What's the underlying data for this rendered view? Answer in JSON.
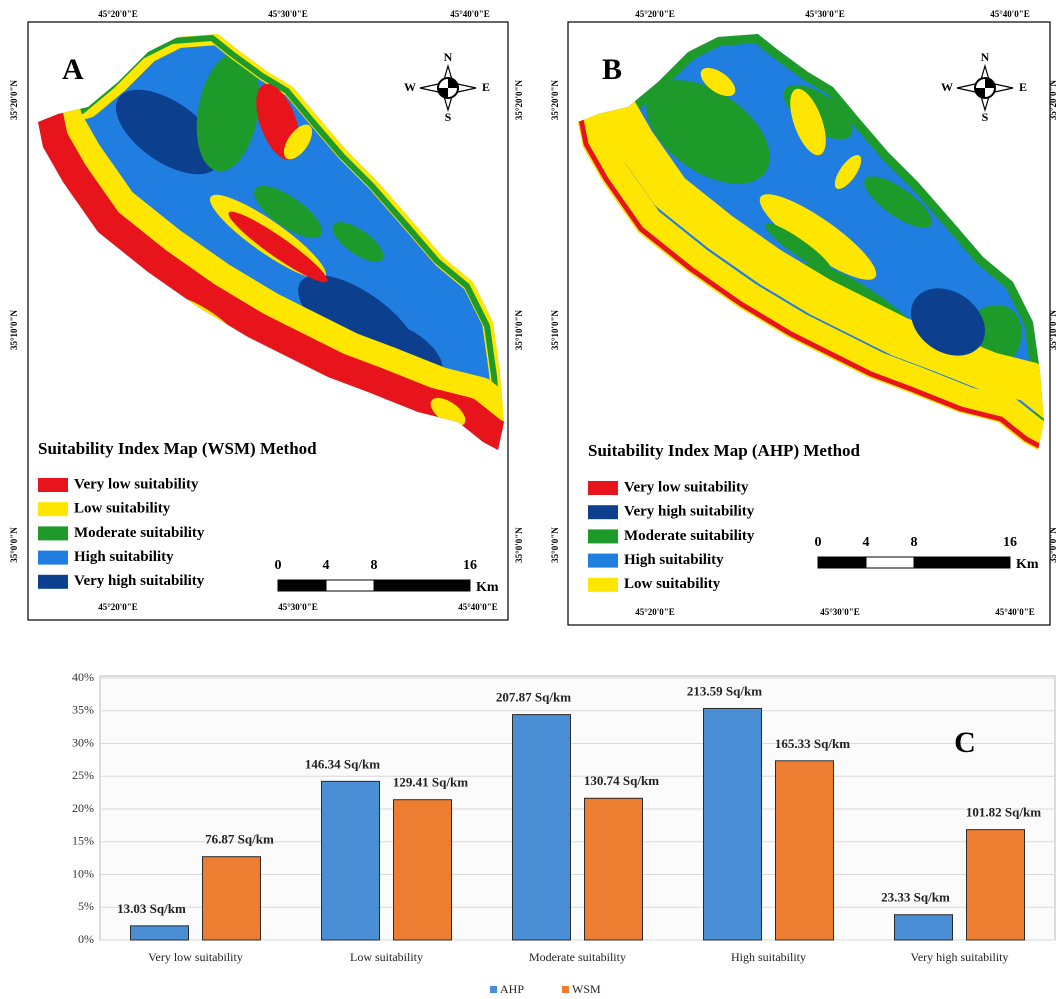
{
  "longitude_labels": [
    "45°20'0\"E",
    "45°30'0\"E",
    "45°40'0\"E"
  ],
  "latitude_labels": [
    "35°20'0\"N",
    "35°10'0\"N",
    "35°0'0\"N"
  ],
  "compass": {
    "north": "N",
    "south": "S",
    "east": "E",
    "west": "W"
  },
  "scale_bar": {
    "labels": [
      "0",
      "4",
      "8",
      "16"
    ],
    "unit": "Km"
  },
  "maps": [
    {
      "panel": "A",
      "title": "Suitability Index Map (WSM)  Method",
      "legend": [
        {
          "label": "Very low suitability",
          "color": "#e8141b"
        },
        {
          "label": " Low suitability",
          "color": "#ffe600"
        },
        {
          "label": "Moderate suitability",
          "color": "#1e9a2a"
        },
        {
          "label": "High suitability",
          "color": "#1f7ee0"
        },
        {
          "label": "Very high suitability",
          "color": "#0d3f8f"
        }
      ]
    },
    {
      "panel": "B",
      "title": "Suitability Index Map (AHP)  Method",
      "legend": [
        {
          "label": "Very low suitability",
          "color": "#e8141b"
        },
        {
          "label": "Very high suitability",
          "color": "#0d3f8f"
        },
        {
          "label": "Moderate suitability",
          "color": "#1e9a2a"
        },
        {
          "label": "High suitability",
          "color": "#1f7ee0"
        },
        {
          "label": " Low suitability",
          "color": "#ffe600"
        }
      ]
    }
  ],
  "chart_data": {
    "type": "bar",
    "panel": "C",
    "categories": [
      "Very low suitability",
      "Low suitability",
      "Moderate suitability",
      "High suitability",
      "Very high suitability"
    ],
    "series": [
      {
        "name": "AHP",
        "color": "#4a8fd6",
        "values": [
          2.16,
          24.22,
          34.41,
          35.35,
          3.86
        ],
        "value_labels": [
          "13.03 Sq/km",
          "146.34 Sq/km",
          "207.87 Sq/km",
          "213.59 Sq/km",
          "23.33 Sq/km"
        ]
      },
      {
        "name": "WSM",
        "color": "#ed7d31",
        "values": [
          12.72,
          21.42,
          21.64,
          27.36,
          16.85
        ],
        "value_labels": [
          "76.87 Sq/km",
          "129.41 Sq/km",
          "130.74 Sq/km",
          "165.33 Sq/km",
          "101.82 Sq/km"
        ]
      }
    ],
    "ylim": [
      0,
      40
    ],
    "yticks": [
      {
        "value": 0,
        "label": "0%"
      },
      {
        "value": 5,
        "label": "5%"
      },
      {
        "value": 10,
        "label": "10%"
      },
      {
        "value": 15,
        "label": "15%"
      },
      {
        "value": 20,
        "label": "20%"
      },
      {
        "value": 25,
        "label": "25%"
      },
      {
        "value": 30,
        "label": "30%"
      },
      {
        "value": 35,
        "label": "35%"
      },
      {
        "value": 40,
        "label": "40%"
      }
    ],
    "grid": true,
    "legend": "bottom"
  }
}
